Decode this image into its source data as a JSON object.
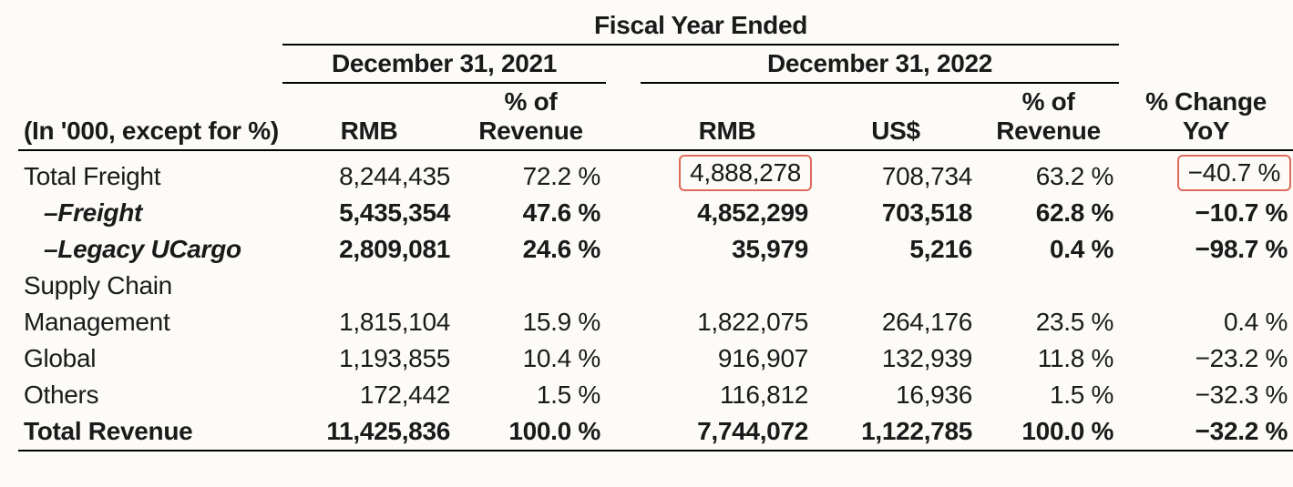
{
  "table": {
    "type": "table",
    "background_color": "#fdfbf8",
    "text_color": "#1a1a1a",
    "font_size_pt": 21,
    "highlight_border_color": "#e06a5a",
    "rule_color": "#000000",
    "header": {
      "super": "Fiscal Year Ended",
      "period_2021": "December 31, 2021",
      "period_2022": "December 31, 2022",
      "row_label": "(In '000, except for %)",
      "rmb_2021": "RMB",
      "pct_2021": "% of Revenue",
      "rmb_2022": "RMB",
      "usd_2022": "US$",
      "pct_2022": "% of Revenue",
      "yoy": "% Change YoY"
    },
    "rows": [
      {
        "label": "Total Freight",
        "indent": 0,
        "bold": false,
        "italic": false,
        "rmb_2021": "8,244,435",
        "pct_2021": "72.2 %",
        "rmb_2022": "4,888,278",
        "usd_2022": "708,734",
        "pct_2022": "63.2 %",
        "yoy": "−40.7 %",
        "highlight_rmb_2022": true,
        "highlight_yoy": true
      },
      {
        "label": "–Freight",
        "indent": 1,
        "bold": true,
        "italic": true,
        "rmb_2021": "5,435,354",
        "pct_2021": "47.6 %",
        "rmb_2022": "4,852,299",
        "usd_2022": "703,518",
        "pct_2022": "62.8 %",
        "yoy": "−10.7 %"
      },
      {
        "label": "–Legacy UCargo",
        "indent": 1,
        "bold": true,
        "italic": true,
        "rmb_2021": "2,809,081",
        "pct_2021": "24.6 %",
        "rmb_2022": "35,979",
        "usd_2022": "5,216",
        "pct_2022": "0.4 %",
        "yoy": "−98.7 %"
      },
      {
        "label": "Supply Chain Management",
        "indent": 0,
        "wrap": true,
        "bold": false,
        "italic": false,
        "rmb_2021": "1,815,104",
        "pct_2021": "15.9 %",
        "rmb_2022": "1,822,075",
        "usd_2022": "264,176",
        "pct_2022": "23.5 %",
        "yoy": "0.4 %"
      },
      {
        "label": "Global",
        "indent": 0,
        "bold": false,
        "italic": false,
        "rmb_2021": "1,193,855",
        "pct_2021": "10.4 %",
        "rmb_2022": "916,907",
        "usd_2022": "132,939",
        "pct_2022": "11.8 %",
        "yoy": "−23.2 %"
      },
      {
        "label": "Others",
        "indent": 0,
        "bold": false,
        "italic": false,
        "rmb_2021": "172,442",
        "pct_2021": "1.5 %",
        "rmb_2022": "116,812",
        "usd_2022": "16,936",
        "pct_2022": "1.5 %",
        "yoy": "−32.3 %"
      },
      {
        "label": "Total Revenue",
        "indent": 0,
        "bold": true,
        "italic": false,
        "rmb_2021": "11,425,836",
        "pct_2021": "100.0 %",
        "rmb_2022": "7,744,072",
        "usd_2022": "1,122,785",
        "pct_2022": "100.0 %",
        "yoy": "−32.2 %",
        "last": true
      }
    ],
    "scm_label_line1": "Supply Chain",
    "scm_label_line2": "Management"
  }
}
